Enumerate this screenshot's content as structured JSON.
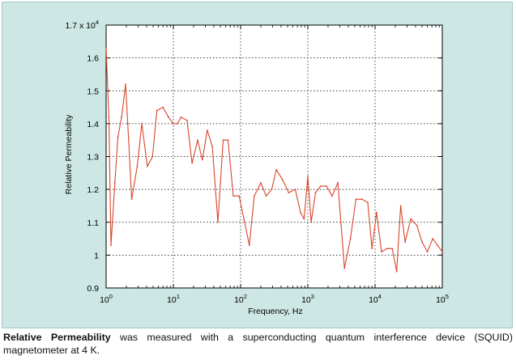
{
  "chart_data": {
    "type": "line",
    "xscale": "log",
    "title": "",
    "xlabel": "Frequency, Hz",
    "ylabel": "Relative Permeability",
    "xlim": [
      1,
      100000
    ],
    "ylim": [
      0.9,
      1.7
    ],
    "grid": true,
    "x_tick_labels": [
      {
        "base": "10",
        "exp": "0"
      },
      {
        "base": "10",
        "exp": "1"
      },
      {
        "base": "10",
        "exp": "2"
      },
      {
        "base": "10",
        "exp": "3"
      },
      {
        "base": "10",
        "exp": "4"
      },
      {
        "base": "10",
        "exp": "5"
      }
    ],
    "y_tick_labels": [
      "0.9",
      "1",
      "1.1",
      "1.2",
      "1.3",
      "1.4",
      "1.5",
      "1.6"
    ],
    "y_top_label": {
      "prefix": "1.7 x 10",
      "exp": "4"
    },
    "series": [
      {
        "name": "Relative Permeability",
        "color": "#d9452b",
        "points": [
          [
            1.0,
            1.63
          ],
          [
            1.1,
            1.42
          ],
          [
            1.18,
            1.03
          ],
          [
            1.35,
            1.22
          ],
          [
            1.5,
            1.36
          ],
          [
            1.7,
            1.42
          ],
          [
            1.95,
            1.52
          ],
          [
            2.1,
            1.4
          ],
          [
            2.4,
            1.17
          ],
          [
            2.9,
            1.27
          ],
          [
            3.4,
            1.4
          ],
          [
            4.1,
            1.27
          ],
          [
            4.9,
            1.3
          ],
          [
            5.7,
            1.44
          ],
          [
            7.0,
            1.45
          ],
          [
            8.5,
            1.42
          ],
          [
            10.0,
            1.4
          ],
          [
            11.5,
            1.4
          ],
          [
            13.0,
            1.42
          ],
          [
            16.0,
            1.41
          ],
          [
            19.0,
            1.28
          ],
          [
            23.0,
            1.35
          ],
          [
            27.0,
            1.29
          ],
          [
            32.0,
            1.38
          ],
          [
            38.0,
            1.33
          ],
          [
            46.0,
            1.1
          ],
          [
            55.0,
            1.35
          ],
          [
            65.0,
            1.35
          ],
          [
            78.0,
            1.18
          ],
          [
            95.0,
            1.18
          ],
          [
            112.0,
            1.11
          ],
          [
            135.0,
            1.03
          ],
          [
            160.0,
            1.18
          ],
          [
            200.0,
            1.22
          ],
          [
            240.0,
            1.18
          ],
          [
            290.0,
            1.2
          ],
          [
            340.0,
            1.26
          ],
          [
            420.0,
            1.23
          ],
          [
            520.0,
            1.19
          ],
          [
            650.0,
            1.2
          ],
          [
            780.0,
            1.13
          ],
          [
            880.0,
            1.11
          ],
          [
            1000.0,
            1.24
          ],
          [
            1120.0,
            1.1
          ],
          [
            1300.0,
            1.19
          ],
          [
            1550.0,
            1.21
          ],
          [
            1900.0,
            1.21
          ],
          [
            2300.0,
            1.18
          ],
          [
            2800.0,
            1.22
          ],
          [
            3500.0,
            0.96
          ],
          [
            4300.0,
            1.05
          ],
          [
            5200.0,
            1.17
          ],
          [
            6400.0,
            1.17
          ],
          [
            7800.0,
            1.16
          ],
          [
            9000.0,
            1.02
          ],
          [
            10500.0,
            1.13
          ],
          [
            12500.0,
            1.01
          ],
          [
            15000.0,
            1.02
          ],
          [
            18000.0,
            1.02
          ],
          [
            21000.0,
            0.95
          ],
          [
            24000.0,
            1.15
          ],
          [
            28000.0,
            1.04
          ],
          [
            34000.0,
            1.11
          ],
          [
            42000.0,
            1.09
          ],
          [
            50000.0,
            1.04
          ],
          [
            60000.0,
            1.01
          ],
          [
            72000.0,
            1.05
          ],
          [
            85000.0,
            1.03
          ],
          [
            100000.0,
            1.01
          ]
        ]
      }
    ]
  },
  "caption": {
    "bold": "Relative Permeability",
    "text": " was measured with a superconducting quantum interference device (SQUID) magnetometer at 4 K."
  },
  "colors": {
    "panel_background": "#cde7e4",
    "plot_background": "#ffffff",
    "line": "#d9452b",
    "grid": "#000000"
  }
}
